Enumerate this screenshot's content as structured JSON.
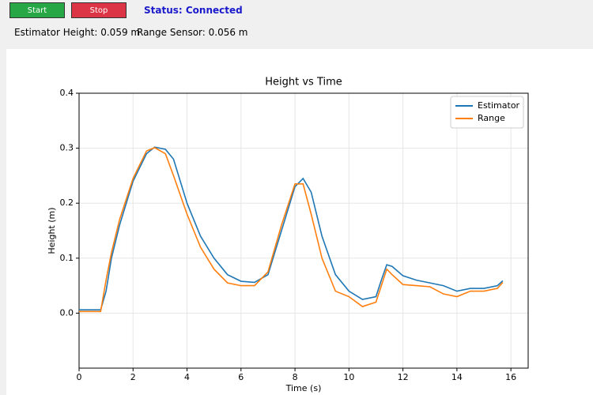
{
  "toolbar": {
    "start_button": "Start",
    "stop_button": "Stop",
    "status": "Status: Connected"
  },
  "readouts": {
    "estimator": "Estimator Height: 0.059 m",
    "range": "Range Sensor: 0.056 m"
  },
  "chart_data": {
    "type": "line",
    "title": "Height vs Time",
    "x_label": "Time (s)",
    "y_label": "Height (m)",
    "x": [
      0,
      0.8,
      1.0,
      1.2,
      1.5,
      2.0,
      2.5,
      2.8,
      3.2,
      3.5,
      4.0,
      4.5,
      5.0,
      5.5,
      6.0,
      6.5,
      7.0,
      7.5,
      8.0,
      8.3,
      8.6,
      9.0,
      9.5,
      10.0,
      10.5,
      11.0,
      11.2,
      11.4,
      11.6,
      12.0,
      12.5,
      13.0,
      13.5,
      14.0,
      14.5,
      15.0,
      15.5,
      15.7
    ],
    "series": [
      {
        "name": "Estimator",
        "color": "#1f77b4",
        "values": [
          0.006,
          0.006,
          0.04,
          0.1,
          0.16,
          0.24,
          0.29,
          0.302,
          0.298,
          0.28,
          0.2,
          0.14,
          0.1,
          0.07,
          0.058,
          0.056,
          0.07,
          0.15,
          0.23,
          0.245,
          0.22,
          0.14,
          0.07,
          0.04,
          0.025,
          0.03,
          0.06,
          0.088,
          0.085,
          0.068,
          0.06,
          0.055,
          0.05,
          0.04,
          0.045,
          0.045,
          0.05,
          0.059
        ]
      },
      {
        "name": "Range",
        "color": "#ff7f0e",
        "values": [
          0.003,
          0.003,
          0.06,
          0.11,
          0.17,
          0.245,
          0.295,
          0.301,
          0.29,
          0.25,
          0.18,
          0.12,
          0.08,
          0.055,
          0.05,
          0.05,
          0.075,
          0.16,
          0.235,
          0.235,
          0.18,
          0.1,
          0.04,
          0.03,
          0.012,
          0.02,
          0.05,
          0.08,
          0.07,
          0.052,
          0.05,
          0.048,
          0.035,
          0.03,
          0.04,
          0.04,
          0.045,
          0.056
        ]
      }
    ],
    "xlim": [
      0,
      16.64
    ],
    "ylim": [
      -0.1,
      0.4
    ],
    "xticks": [
      0,
      2,
      4,
      6,
      8,
      10,
      12,
      14,
      16
    ],
    "yticks": [
      {
        "value": 0,
        "label": "0.0"
      },
      0.1,
      0.2,
      0.3,
      0.4
    ],
    "grid": true,
    "legend": "upper right"
  }
}
